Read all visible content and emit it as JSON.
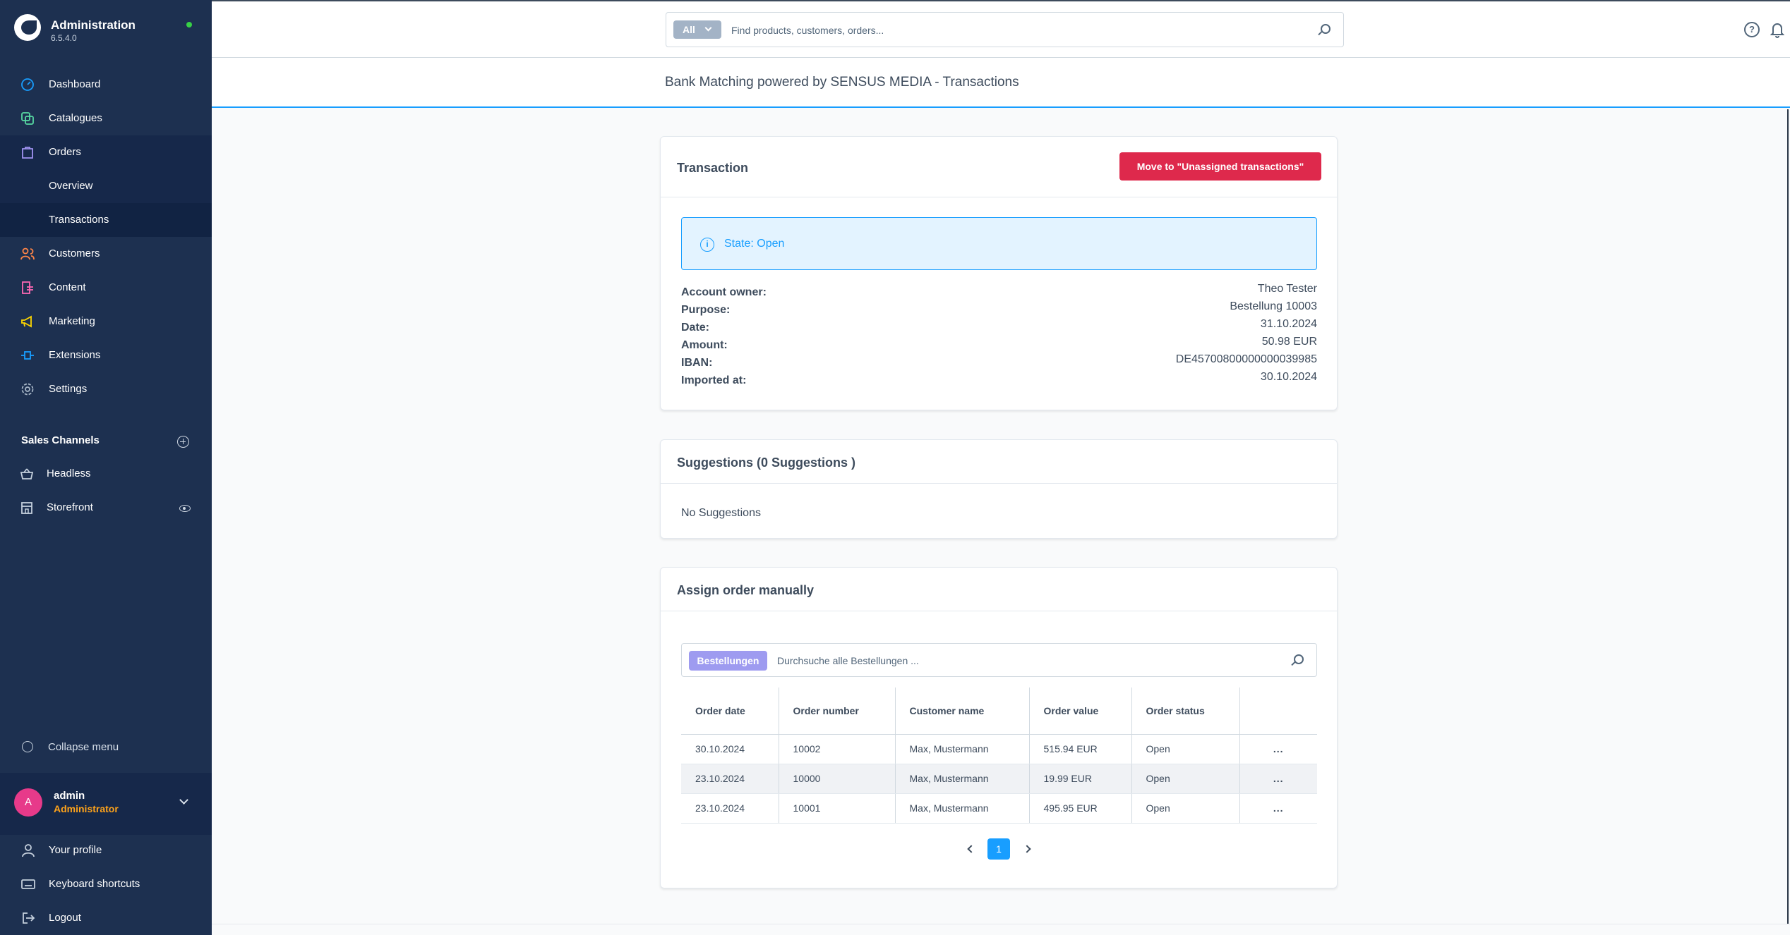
{
  "app": {
    "title": "Administration",
    "version": "6.5.4.0"
  },
  "sidebar": {
    "items": [
      {
        "label": "Dashboard",
        "icon": "dashboard-icon"
      },
      {
        "label": "Catalogues",
        "icon": "catalogues-icon"
      },
      {
        "label": "Orders",
        "icon": "orders-icon"
      },
      {
        "label": "Customers",
        "icon": "customers-icon"
      },
      {
        "label": "Content",
        "icon": "content-icon"
      },
      {
        "label": "Marketing",
        "icon": "marketing-icon"
      },
      {
        "label": "Extensions",
        "icon": "extensions-icon"
      },
      {
        "label": "Settings",
        "icon": "settings-icon"
      }
    ],
    "orders_sub": [
      {
        "label": "Overview"
      },
      {
        "label": "Transactions",
        "active": true
      }
    ],
    "sales_channels_title": "Sales Channels",
    "channels": [
      {
        "label": "Headless",
        "icon": "headless-icon"
      },
      {
        "label": "Storefront",
        "icon": "storefront-icon"
      }
    ],
    "collapse_label": "Collapse menu",
    "user": {
      "initial": "A",
      "name": "admin",
      "role": "Administrator"
    },
    "footer": [
      {
        "label": "Your profile",
        "icon": "profile-icon"
      },
      {
        "label": "Keyboard shortcuts",
        "icon": "keyboard-icon"
      },
      {
        "label": "Logout",
        "icon": "logout-icon"
      }
    ]
  },
  "topbar": {
    "search_type": "All",
    "search_placeholder": "Find products, customers, orders..."
  },
  "page": {
    "title": "Bank Matching powered by SENSUS MEDIA - Transactions"
  },
  "transaction": {
    "title": "Transaction",
    "move_button": "Move to \"Unassigned transactions\"",
    "state": "State: Open",
    "details": [
      {
        "label": "Account owner:",
        "value": "Theo Tester"
      },
      {
        "label": "Purpose:",
        "value": "Bestellung 10003"
      },
      {
        "label": "Date:",
        "value": "31.10.2024"
      },
      {
        "label": "Amount:",
        "value": "50.98 EUR"
      },
      {
        "label": "IBAN:",
        "value": "DE45700800000000039985"
      },
      {
        "label": "Imported at:",
        "value": "30.10.2024"
      }
    ]
  },
  "suggestions": {
    "title": "Suggestions (0 Suggestions )",
    "empty": "No Suggestions"
  },
  "assign": {
    "title": "Assign order manually",
    "search_type": "Bestellungen",
    "search_placeholder": "Durchsuche alle Bestellungen ...",
    "columns": [
      "Order date",
      "Order number",
      "Customer name",
      "Order value",
      "Order status"
    ],
    "rows": [
      {
        "date": "30.10.2024",
        "number": "10002",
        "customer": "Max, Mustermann",
        "value": "515.94 EUR",
        "status": "Open",
        "actions": "..."
      },
      {
        "date": "23.10.2024",
        "number": "10000",
        "customer": "Max, Mustermann",
        "value": "19.99 EUR",
        "status": "Open",
        "actions": "..."
      },
      {
        "date": "23.10.2024",
        "number": "10001",
        "customer": "Max, Mustermann",
        "value": "495.95 EUR",
        "status": "Open",
        "actions": "..."
      }
    ],
    "page": "1"
  },
  "colors": {
    "sidebar_bg": "#1d3050",
    "accent": "#189eff",
    "danger": "#de294c",
    "role": "#ffa31a"
  }
}
